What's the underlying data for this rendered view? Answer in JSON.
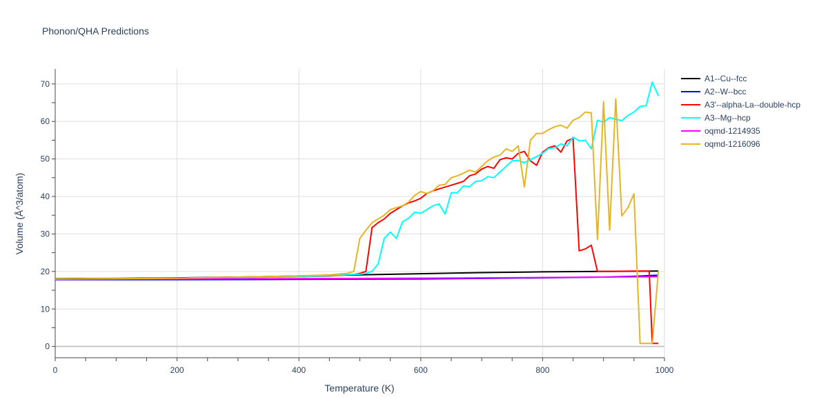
{
  "chart_data": {
    "type": "line",
    "title": "Phonon/QHA Predictions",
    "xlabel": "Temperature (K)",
    "ylabel": "Volume (Å^3/atom)",
    "xlim": [
      0,
      1000
    ],
    "ylim": [
      -3,
      74
    ],
    "xticks": [
      0,
      200,
      400,
      600,
      800,
      1000
    ],
    "yticks": [
      0,
      10,
      20,
      30,
      40,
      50,
      60,
      70
    ],
    "grid": true,
    "legend_position": "right",
    "series": [
      {
        "name": "A1--Cu--fcc",
        "color": "#000000",
        "x": [
          0,
          100,
          200,
          300,
          400,
          500,
          600,
          700,
          800,
          900,
          990
        ],
        "y": [
          18.1,
          18.15,
          18.3,
          18.5,
          18.8,
          19.1,
          19.4,
          19.7,
          19.9,
          20.0,
          20.1
        ]
      },
      {
        "name": "A2--W--bcc",
        "color": "#0000ff",
        "x": [
          0,
          200,
          400,
          600,
          800,
          900,
          950,
          990
        ],
        "y": [
          17.8,
          17.8,
          17.9,
          18.0,
          18.3,
          18.5,
          18.7,
          19.0
        ]
      },
      {
        "name": "A3'--alpha-La--double-hcp",
        "color": "#ff0000",
        "x": [
          0,
          100,
          200,
          300,
          400,
          450,
          490,
          500,
          510,
          520,
          530,
          540,
          550,
          560,
          570,
          580,
          590,
          600,
          610,
          620,
          630,
          640,
          650,
          660,
          670,
          680,
          690,
          700,
          710,
          720,
          730,
          740,
          750,
          760,
          770,
          780,
          790,
          800,
          810,
          820,
          830,
          840,
          850,
          860,
          870,
          880,
          890,
          900,
          950,
          975,
          980,
          990
        ],
        "y": [
          18.0,
          18.1,
          18.2,
          18.4,
          18.6,
          18.8,
          19.2,
          19.5,
          20.0,
          31.7,
          33.0,
          34.0,
          35.5,
          36.5,
          37.5,
          38.3,
          38.8,
          39.5,
          40.8,
          41.5,
          42.0,
          42.5,
          43.0,
          43.5,
          44.0,
          45.5,
          46.0,
          47.3,
          48.0,
          47.5,
          49.8,
          50.3,
          50.0,
          51.5,
          52.0,
          49.5,
          48.3,
          51.8,
          53.0,
          53.5,
          51.8,
          54.8,
          55.5,
          25.5,
          26.0,
          27.0,
          20.0,
          20.0,
          20.1,
          20.1,
          0.8,
          0.8
        ]
      },
      {
        "name": "A3--Mg--hcp",
        "color": "#00ffff",
        "x": [
          0,
          100,
          200,
          300,
          400,
          450,
          500,
          510,
          520,
          530,
          540,
          550,
          560,
          570,
          580,
          590,
          600,
          610,
          620,
          630,
          640,
          650,
          660,
          670,
          680,
          690,
          700,
          710,
          720,
          730,
          740,
          750,
          760,
          770,
          780,
          790,
          800,
          810,
          820,
          830,
          840,
          850,
          860,
          870,
          880,
          890,
          900,
          910,
          920,
          930,
          940,
          950,
          960,
          970,
          980,
          990
        ],
        "y": [
          18.0,
          18.1,
          18.2,
          18.4,
          18.6,
          18.9,
          19.3,
          19.5,
          20.0,
          22.0,
          28.8,
          30.5,
          28.8,
          33.2,
          34.2,
          35.8,
          35.5,
          36.5,
          37.5,
          38.0,
          35.3,
          41.0,
          41.0,
          42.8,
          42.6,
          44.0,
          44.2,
          45.3,
          45.0,
          46.5,
          48.0,
          49.5,
          49.6,
          49.0,
          49.8,
          50.6,
          51.5,
          52.8,
          53.0,
          54.0,
          53.5,
          55.8,
          54.8,
          55.0,
          52.7,
          60.3,
          59.8,
          61.0,
          60.6,
          60.2,
          61.6,
          62.5,
          64.0,
          64.2,
          70.5,
          66.8
        ]
      },
      {
        "name": "oqmd-1214935",
        "color": "#ff00ff",
        "x": [
          0,
          200,
          400,
          600,
          800,
          990
        ],
        "y": [
          17.9,
          18.0,
          18.1,
          18.2,
          18.4,
          18.6
        ]
      },
      {
        "name": "oqmd-1216096",
        "color": "#e6b422",
        "x": [
          0,
          100,
          200,
          300,
          400,
          450,
          480,
          490,
          500,
          510,
          520,
          530,
          540,
          550,
          560,
          570,
          580,
          590,
          600,
          610,
          620,
          630,
          640,
          650,
          660,
          670,
          680,
          690,
          700,
          710,
          720,
          730,
          740,
          750,
          760,
          770,
          780,
          790,
          800,
          810,
          820,
          830,
          840,
          850,
          860,
          870,
          880,
          890,
          900,
          910,
          920,
          930,
          940,
          950,
          960,
          970,
          980,
          990
        ],
        "y": [
          18.0,
          18.1,
          18.2,
          18.5,
          18.8,
          19.1,
          19.5,
          20.0,
          28.8,
          31.0,
          33.0,
          34.0,
          35.0,
          36.5,
          37.0,
          37.5,
          38.5,
          40.3,
          41.3,
          40.8,
          41.5,
          43.0,
          43.2,
          45.0,
          45.5,
          46.2,
          47.0,
          46.5,
          48.0,
          49.5,
          50.5,
          51.0,
          52.7,
          52.0,
          53.5,
          42.5,
          55.0,
          56.8,
          56.8,
          57.8,
          58.6,
          59.0,
          58.2,
          60.3,
          61.0,
          62.5,
          62.3,
          28.5,
          65.3,
          31.0,
          66.0,
          34.8,
          37.0,
          40.7,
          0.8,
          0.8,
          0.8,
          20.1
        ]
      }
    ]
  }
}
